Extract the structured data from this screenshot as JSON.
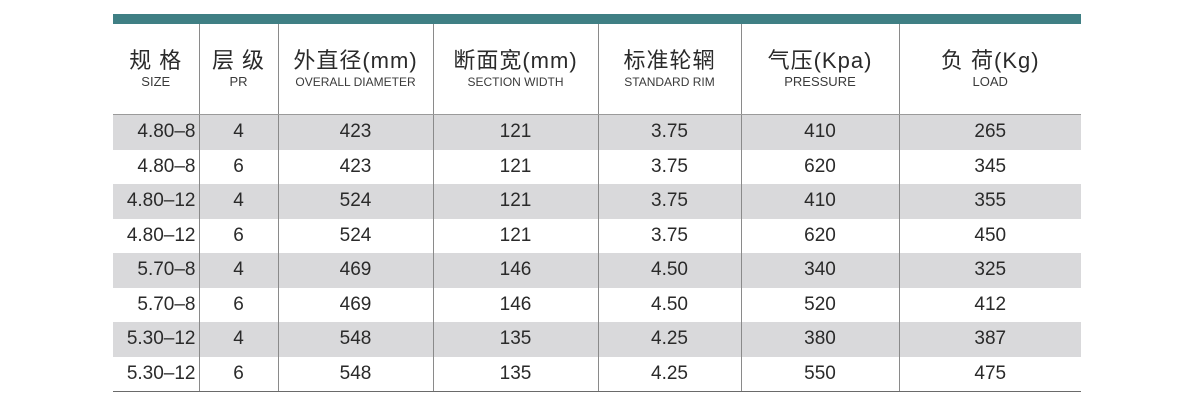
{
  "headers": [
    {
      "cn": "规 格",
      "en": "SIZE"
    },
    {
      "cn": "层 级",
      "en": "PR"
    },
    {
      "cn": "外直径(mm)",
      "en": "OVERALL DIAMETER"
    },
    {
      "cn": "断面宽(mm)",
      "en": "SECTION WIDTH"
    },
    {
      "cn": "标准轮辋",
      "en": "STANDARD RIM"
    },
    {
      "cn": "气压(Kpa)",
      "en": "PRESSURE"
    },
    {
      "cn": "负 荷(Kg)",
      "en": "LOAD"
    }
  ],
  "rows": [
    [
      "4.80–8",
      "4",
      "423",
      "121",
      "3.75",
      "410",
      "265"
    ],
    [
      "4.80–8",
      "6",
      "423",
      "121",
      "3.75",
      "620",
      "345"
    ],
    [
      "4.80–12",
      "4",
      "524",
      "121",
      "3.75",
      "410",
      "355"
    ],
    [
      "4.80–12",
      "6",
      "524",
      "121",
      "3.75",
      "620",
      "450"
    ],
    [
      "5.70–8",
      "4",
      "469",
      "146",
      "4.50",
      "340",
      "325"
    ],
    [
      "5.70–8",
      "6",
      "469",
      "146",
      "4.50",
      "520",
      "412"
    ],
    [
      "5.30–12",
      "4",
      "548",
      "135",
      "4.25",
      "380",
      "387"
    ],
    [
      "5.30–12",
      "6",
      "548",
      "135",
      "4.25",
      "550",
      "475"
    ]
  ],
  "colors": {
    "accent_bar": "#3f7f84",
    "stripe": "#d9d9db"
  }
}
